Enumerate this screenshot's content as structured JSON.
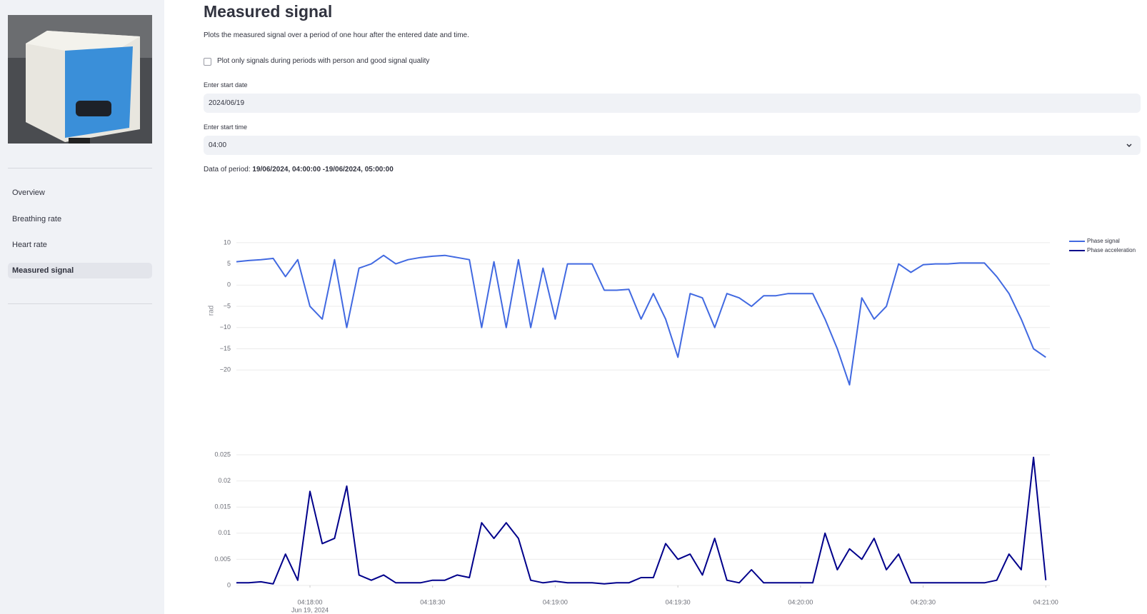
{
  "sidebar": {
    "nav": [
      "Overview",
      "Breathing rate",
      "Heart rate",
      "Measured signal"
    ]
  },
  "main": {
    "title": "Measured signal",
    "description": "Plots the measured signal over a period of one hour after the entered date and time.",
    "checkbox_label": "Plot only signals during periods with person and good signal quality",
    "date_label": "Enter start date",
    "date_value": "2024/06/19",
    "time_label": "Enter start time",
    "time_value": "04:00",
    "period_label": "Data of period:",
    "period_value": "19/06/2024, 04:00:00 -19/06/2024, 05:00:00"
  },
  "chart_data": [
    {
      "type": "line",
      "y_label": "rad",
      "xlim": [
        "04:17:42",
        "04:21:01"
      ],
      "ylim": [
        -24,
        12
      ],
      "yticks": [
        10,
        5,
        0,
        {
          "value": -5,
          "label": "−5"
        },
        {
          "value": -10,
          "label": "−10"
        },
        {
          "value": -15,
          "label": "−15"
        },
        {
          "value": -20,
          "label": "−20"
        }
      ],
      "grid": true,
      "x": [
        "04:17:42",
        "04:17:45",
        "04:17:48",
        "04:17:51",
        "04:17:54",
        "04:17:57",
        "04:18:00",
        "04:18:03",
        "04:18:06",
        "04:18:09",
        "04:18:12",
        "04:18:15",
        "04:18:18",
        "04:18:21",
        "04:18:24",
        "04:18:27",
        "04:18:30",
        "04:18:33",
        "04:18:36",
        "04:18:39",
        "04:18:42",
        "04:18:45",
        "04:18:48",
        "04:18:51",
        "04:18:54",
        "04:18:57",
        "04:19:00",
        "04:19:03",
        "04:19:06",
        "04:19:09",
        "04:19:12",
        "04:19:15",
        "04:19:18",
        "04:19:21",
        "04:19:24",
        "04:19:27",
        "04:19:30",
        "04:19:33",
        "04:19:36",
        "04:19:39",
        "04:19:42",
        "04:19:45",
        "04:19:48",
        "04:19:51",
        "04:19:54",
        "04:19:57",
        "04:20:00",
        "04:20:03",
        "04:20:06",
        "04:20:09",
        "04:20:12",
        "04:20:15",
        "04:20:18",
        "04:20:21",
        "04:20:24",
        "04:20:27",
        "04:20:30",
        "04:20:33",
        "04:20:36",
        "04:20:39",
        "04:20:42",
        "04:20:45",
        "04:20:48",
        "04:20:51",
        "04:20:54",
        "04:20:57",
        "04:21:00"
      ],
      "series": [
        {
          "name": "Phase signal",
          "color": "#4169e1",
          "values": [
            5.5,
            5.8,
            6,
            6.3,
            2,
            6,
            -5,
            -8,
            6,
            -10,
            4,
            5,
            7,
            5,
            6,
            6.5,
            6.8,
            7,
            6.5,
            6,
            -10,
            5.5,
            -10,
            6,
            -10,
            4,
            -8,
            5,
            5,
            5,
            -1.2,
            -1.2,
            -1,
            -8,
            -2,
            -8,
            -17,
            -2,
            -3,
            -10,
            -2,
            -3,
            -5,
            -2.5,
            -2.5,
            -2,
            -2,
            -2,
            -8,
            -15,
            -23.5,
            -3,
            -8,
            -5,
            5,
            3,
            4.8,
            5,
            5,
            5.2,
            5.2,
            5.2,
            2,
            -2,
            -8,
            -15,
            -17
          ]
        }
      ]
    },
    {
      "type": "line",
      "xlim": [
        "04:17:42",
        "04:21:01"
      ],
      "ylim": [
        0,
        0.0265
      ],
      "xticks": [
        "04:18:00",
        "04:18:30",
        "04:19:00",
        "04:19:30",
        "04:20:00",
        "04:20:30",
        "04:21:00"
      ],
      "xtick_date": "Jun 19, 2024",
      "yticks": [
        0,
        0.005,
        0.01,
        0.015,
        0.02,
        0.025
      ],
      "grid": true,
      "x": [
        "04:17:42",
        "04:17:45",
        "04:17:48",
        "04:17:51",
        "04:17:54",
        "04:17:57",
        "04:18:00",
        "04:18:03",
        "04:18:06",
        "04:18:09",
        "04:18:12",
        "04:18:15",
        "04:18:18",
        "04:18:21",
        "04:18:24",
        "04:18:27",
        "04:18:30",
        "04:18:33",
        "04:18:36",
        "04:18:39",
        "04:18:42",
        "04:18:45",
        "04:18:48",
        "04:18:51",
        "04:18:54",
        "04:18:57",
        "04:19:00",
        "04:19:03",
        "04:19:06",
        "04:19:09",
        "04:19:12",
        "04:19:15",
        "04:19:18",
        "04:19:21",
        "04:19:24",
        "04:19:27",
        "04:19:30",
        "04:19:33",
        "04:19:36",
        "04:19:39",
        "04:19:42",
        "04:19:45",
        "04:19:48",
        "04:19:51",
        "04:19:54",
        "04:19:57",
        "04:20:00",
        "04:20:03",
        "04:20:06",
        "04:20:09",
        "04:20:12",
        "04:20:15",
        "04:20:18",
        "04:20:21",
        "04:20:24",
        "04:20:27",
        "04:20:30",
        "04:20:33",
        "04:20:36",
        "04:20:39",
        "04:20:42",
        "04:20:45",
        "04:20:48",
        "04:20:51",
        "04:20:54",
        "04:20:57",
        "04:21:00"
      ],
      "series": [
        {
          "name": "Phase acceleration",
          "color": "#00008b",
          "values": [
            0.0005,
            0.0005,
            0.0007,
            0.0003,
            0.006,
            0.001,
            0.018,
            0.008,
            0.009,
            0.019,
            0.002,
            0.001,
            0.002,
            0.0005,
            0.0005,
            0.0005,
            0.001,
            0.001,
            0.002,
            0.0015,
            0.012,
            0.009,
            0.012,
            0.009,
            0.001,
            0.0005,
            0.0008,
            0.0005,
            0.0005,
            0.0005,
            0.0003,
            0.0005,
            0.0005,
            0.0015,
            0.0015,
            0.008,
            0.005,
            0.006,
            0.002,
            0.009,
            0.001,
            0.0005,
            0.003,
            0.0005,
            0.0005,
            0.0005,
            0.0005,
            0.0005,
            0.01,
            0.003,
            0.007,
            0.005,
            0.009,
            0.003,
            0.006,
            0.0005,
            0.0005,
            0.0005,
            0.0005,
            0.0005,
            0.0005,
            0.0005,
            0.001,
            0.006,
            0.003,
            0.0245,
            0.001
          ]
        }
      ]
    }
  ]
}
